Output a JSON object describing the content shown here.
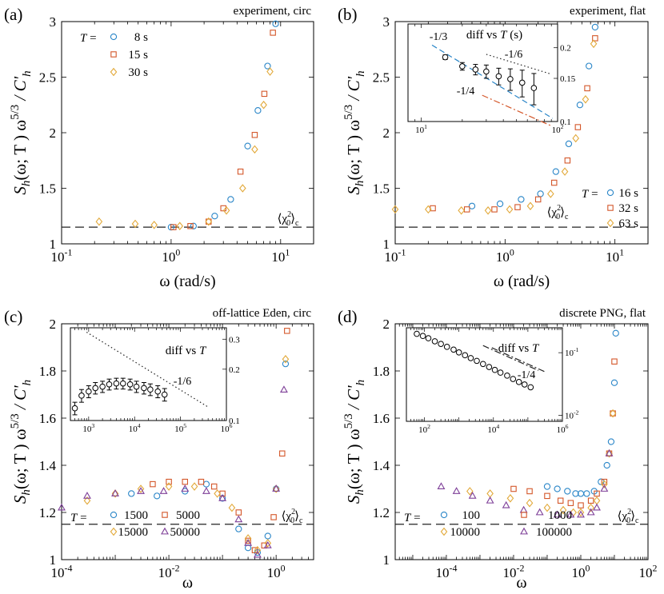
{
  "figure": {
    "ylabel_main": "S",
    "ylabel_sub": "h",
    "ylabel_rest": "(ω; T ) ω",
    "ylabel_exp": "5/3",
    "ylabel_tail": " / C'",
    "ylabel_tail_sub": "h",
    "ref_label_a": "⟨χ",
    "ref_label_sup": "2",
    "ref_label_sub": "0",
    "ref_label_c": "⟩",
    "ref_label_csub": "c"
  },
  "colors": {
    "blue": "#2a86c8",
    "red": "#d4572a",
    "orange": "#e2a93a",
    "purple": "#7e3f98",
    "black": "#222222"
  },
  "chart_data": [
    {
      "type": "scatter",
      "panel": "(a)",
      "title": "experiment, circ",
      "xlabel": "ω (rad/s)",
      "xscale": "log",
      "xlim": [
        0.1,
        20
      ],
      "ylim": [
        1,
        3
      ],
      "xticks": [
        "10-1",
        "100",
        "101"
      ],
      "yticks": [
        "1",
        "1.5",
        "2",
        "2.5",
        "3"
      ],
      "reference_level": 1.15,
      "legend_prefix": "T =",
      "series": [
        {
          "name": "8 s",
          "marker": "circle",
          "color": "blue",
          "x": [
            1.0,
            1.6,
            2.5,
            3.5,
            5.0,
            6.2,
            7.6,
            9.0
          ],
          "y": [
            1.15,
            1.16,
            1.25,
            1.4,
            1.88,
            2.2,
            2.6,
            2.98
          ]
        },
        {
          "name": "15 s",
          "marker": "square",
          "color": "red",
          "x": [
            1.05,
            1.5,
            2.2,
            3.0,
            4.3,
            5.8,
            7.1,
            8.5
          ],
          "y": [
            1.15,
            1.16,
            1.2,
            1.32,
            1.65,
            1.98,
            2.35,
            2.9
          ]
        },
        {
          "name": "30 s",
          "marker": "diamond",
          "color": "orange",
          "x": [
            0.22,
            0.47,
            0.7,
            1.2,
            2.2,
            3.2,
            4.5,
            5.8,
            7.0,
            8.0
          ],
          "y": [
            1.2,
            1.18,
            1.17,
            1.16,
            1.2,
            1.3,
            1.5,
            1.85,
            2.25,
            2.55
          ]
        }
      ]
    },
    {
      "type": "scatter",
      "panel": "(b)",
      "title": "experiment, flat",
      "xlabel": "ω (rad/s)",
      "xscale": "log",
      "xlim": [
        0.1,
        20
      ],
      "ylim": [
        1,
        3
      ],
      "xticks": [
        "10-1",
        "100",
        "101"
      ],
      "yticks": [
        "1",
        "1.5",
        "2",
        "2.5",
        "3"
      ],
      "reference_level": 1.15,
      "legend_prefix": "T =",
      "series": [
        {
          "name": "16 s",
          "marker": "circle",
          "color": "blue",
          "x": [
            0.5,
            0.9,
            1.4,
            2.1,
            2.9,
            3.8,
            4.8,
            5.8,
            6.6
          ],
          "y": [
            1.34,
            1.36,
            1.4,
            1.45,
            1.65,
            1.9,
            2.25,
            2.6,
            2.95
          ]
        },
        {
          "name": "32 s",
          "marker": "square",
          "color": "red",
          "x": [
            0.22,
            0.45,
            0.8,
            1.3,
            2.0,
            2.8,
            3.7,
            4.6,
            5.6,
            6.6
          ],
          "y": [
            1.32,
            1.31,
            1.31,
            1.33,
            1.4,
            1.55,
            1.75,
            2.05,
            2.4,
            2.85
          ]
        },
        {
          "name": "63 s",
          "marker": "diamond",
          "color": "orange",
          "x": [
            0.1,
            0.2,
            0.4,
            0.7,
            1.1,
            1.7,
            2.6,
            3.5,
            4.4,
            5.4,
            6.4
          ],
          "y": [
            1.31,
            1.31,
            1.3,
            1.3,
            1.31,
            1.34,
            1.45,
            1.65,
            1.95,
            2.3,
            2.8
          ]
        }
      ],
      "inset": {
        "title_a": "diff  vs  ",
        "title_b": "T",
        "title_c": " (s)",
        "xscale": "log",
        "yscale": "log",
        "xlim": [
          8,
          100
        ],
        "ylim": [
          0.1,
          0.25
        ],
        "xticks": [
          "101",
          "102"
        ],
        "yticks": [
          "0.1",
          "0.15",
          "0.2"
        ],
        "points": {
          "x": [
            15,
            20,
            25,
            30,
            37,
            45,
            55,
            67
          ],
          "y": [
            0.183,
            0.168,
            0.163,
            0.16,
            0.153,
            0.149,
            0.144,
            0.137
          ],
          "err": [
            0.004,
            0.006,
            0.008,
            0.01,
            0.012,
            0.015,
            0.018,
            0.02
          ]
        },
        "slopes": [
          {
            "label": "-1/3",
            "color": "blue",
            "style": "dashed",
            "x0": 12,
            "y0": 0.205,
            "x1": 92,
            "y1": 0.103
          },
          {
            "label": "-1/6",
            "color": "black",
            "style": "dotted",
            "x0": 30,
            "y0": 0.188,
            "x1": 90,
            "y1": 0.156
          },
          {
            "label": "-1/4",
            "color": "red",
            "style": "dashdot",
            "x0": 28,
            "y0": 0.128,
            "x1": 90,
            "y1": 0.096
          }
        ]
      }
    },
    {
      "type": "scatter",
      "panel": "(c)",
      "title": "off-lattice Eden, circ",
      "xlabel": "ω",
      "xscale": "log",
      "xlim": [
        0.0001,
        5
      ],
      "ylim": [
        1,
        2
      ],
      "xticks": [
        "10-4",
        "10-2",
        "100"
      ],
      "yticks": [
        "1",
        "1.2",
        "1.4",
        "1.6",
        "1.8",
        "2"
      ],
      "reference_level": 1.15,
      "legend_prefix": "T =",
      "series": [
        {
          "name": "1500",
          "marker": "circle",
          "color": "blue",
          "x": [
            0.002,
            0.006,
            0.02,
            0.05,
            0.1,
            0.2,
            0.3,
            0.45,
            0.7,
            1.0,
            1.5
          ],
          "y": [
            1.28,
            1.27,
            1.29,
            1.32,
            1.26,
            1.13,
            1.05,
            1.03,
            1.1,
            1.3,
            1.83
          ]
        },
        {
          "name": "5000",
          "marker": "square",
          "color": "red",
          "x": [
            0.005,
            0.01,
            0.02,
            0.04,
            0.07,
            0.1,
            0.2,
            0.3,
            0.4,
            0.6,
            0.9,
            1.3,
            1.6
          ],
          "y": [
            1.32,
            1.33,
            1.33,
            1.33,
            1.31,
            1.28,
            1.2,
            1.08,
            1.04,
            1.06,
            1.18,
            1.45,
            1.97
          ]
        },
        {
          "name": "15000",
          "marker": "diamond",
          "color": "orange",
          "x": [
            0.0003,
            0.001,
            0.003,
            0.01,
            0.03,
            0.08,
            0.15,
            0.3,
            0.45,
            0.7,
            1.0,
            1.5
          ],
          "y": [
            1.25,
            1.28,
            1.3,
            1.31,
            1.31,
            1.28,
            1.22,
            1.09,
            1.04,
            1.07,
            1.3,
            1.85
          ]
        },
        {
          "name": "50000",
          "marker": "triangle",
          "color": "purple",
          "x": [
            0.0001,
            0.0003,
            0.001,
            0.003,
            0.008,
            0.02,
            0.05,
            0.1,
            0.2,
            0.3,
            0.45,
            0.7,
            1.0,
            1.4
          ],
          "y": [
            1.22,
            1.27,
            1.28,
            1.29,
            1.29,
            1.3,
            1.29,
            1.26,
            1.17,
            1.07,
            1.02,
            1.06,
            1.3,
            1.72
          ]
        }
      ],
      "inset": {
        "title_a": "diff  vs  ",
        "title_b": "T",
        "title_c": "",
        "xscale": "log",
        "yscale": "log",
        "xlim": [
          400,
          1000000
        ],
        "ylim": [
          0.1,
          0.35
        ],
        "xticks": [
          "103",
          "104",
          "105",
          "106"
        ],
        "yticks": [
          "0.1",
          "0.2",
          "0.3"
        ],
        "points": {
          "x": [
            500,
            700,
            1000,
            1400,
            2000,
            2800,
            4000,
            5600,
            8000,
            11000,
            16000,
            22000,
            32000,
            45000
          ],
          "y": [
            0.118,
            0.14,
            0.148,
            0.155,
            0.158,
            0.163,
            0.165,
            0.165,
            0.163,
            0.158,
            0.155,
            0.152,
            0.148,
            0.142
          ],
          "err": [
            0.01,
            0.012,
            0.012,
            0.012,
            0.012,
            0.012,
            0.012,
            0.012,
            0.012,
            0.012,
            0.012,
            0.012,
            0.012,
            0.012
          ]
        },
        "slopes": [
          {
            "label": "-1/6",
            "color": "black",
            "style": "dotted",
            "x0": 900,
            "y0": 0.33,
            "x1": 400000,
            "y1": 0.12
          }
        ]
      }
    },
    {
      "type": "scatter",
      "panel": "(d)",
      "title": "discrete PNG, flat",
      "xlabel": "ω",
      "xscale": "log",
      "xlim": [
        3e-06,
        100
      ],
      "ylim": [
        1,
        2
      ],
      "xticks": [
        "10-4",
        "10-2",
        "100",
        "102"
      ],
      "yticks": [
        "1",
        "1.2",
        "1.4",
        "1.6",
        "1.8",
        "2"
      ],
      "reference_level": 1.15,
      "legend_prefix": "T =",
      "series": [
        {
          "name": "100",
          "marker": "circle",
          "color": "blue",
          "x": [
            0.1,
            0.2,
            0.4,
            0.7,
            1.0,
            1.5,
            2.5,
            4,
            6,
            8,
            10,
            11
          ],
          "y": [
            1.31,
            1.3,
            1.29,
            1.28,
            1.28,
            1.28,
            1.29,
            1.33,
            1.4,
            1.5,
            1.75,
            1.96
          ]
        },
        {
          "name": "1000",
          "marker": "square",
          "color": "red",
          "x": [
            0.01,
            0.03,
            0.1,
            0.25,
            0.5,
            1.0,
            2,
            3,
            5,
            7,
            9,
            10
          ],
          "y": [
            1.3,
            1.29,
            1.27,
            1.25,
            1.24,
            1.23,
            1.25,
            1.28,
            1.33,
            1.45,
            1.62,
            1.84
          ]
        },
        {
          "name": "10000",
          "marker": "diamond",
          "color": "orange",
          "x": [
            0.0005,
            0.002,
            0.008,
            0.03,
            0.1,
            0.3,
            0.6,
            1.0,
            2,
            3,
            5,
            7,
            9
          ],
          "y": [
            1.29,
            1.28,
            1.26,
            1.24,
            1.22,
            1.21,
            1.2,
            1.2,
            1.22,
            1.25,
            1.32,
            1.45,
            1.62
          ]
        },
        {
          "name": "100000",
          "marker": "triangle",
          "color": "purple",
          "x": [
            7e-05,
            0.0002,
            0.0006,
            0.002,
            0.006,
            0.02,
            0.06,
            0.2,
            0.5,
            1,
            2,
            3,
            5,
            7
          ],
          "y": [
            1.31,
            1.29,
            1.27,
            1.25,
            1.23,
            1.21,
            1.2,
            1.19,
            1.19,
            1.19,
            1.2,
            1.22,
            1.3,
            1.45
          ]
        }
      ],
      "inset": {
        "title_a": "diff  vs  ",
        "title_b": "T",
        "title_c": "",
        "xscale": "log",
        "yscale": "log",
        "xlim": [
          30,
          1000000
        ],
        "ylim": [
          0.008,
          0.25
        ],
        "xticks": [
          "102",
          "104",
          "106"
        ],
        "yticks": [
          "10-2",
          "10-1"
        ],
        "points": {
          "x": [
            60,
            90,
            130,
            200,
            300,
            450,
            700,
            1000,
            1500,
            2200,
            3300,
            5000,
            7500,
            11000,
            16000,
            25000,
            37000,
            55000,
            80000,
            120000
          ],
          "y": [
            0.2,
            0.185,
            0.17,
            0.152,
            0.138,
            0.124,
            0.112,
            0.101,
            0.091,
            0.082,
            0.074,
            0.066,
            0.059,
            0.053,
            0.048,
            0.043,
            0.038,
            0.034,
            0.031,
            0.028
          ],
          "err": []
        },
        "slopes": [
          {
            "label": "",
            "color": "black",
            "style": "dashdot",
            "x0": 5000,
            "y0": 0.13,
            "x1": 200000,
            "y1": 0.052
          },
          {
            "label": "-1/4",
            "color": "black",
            "style": "dashdot",
            "x0": 9000,
            "y0": 0.12,
            "x1": 300000,
            "y1": 0.05
          }
        ]
      }
    }
  ]
}
